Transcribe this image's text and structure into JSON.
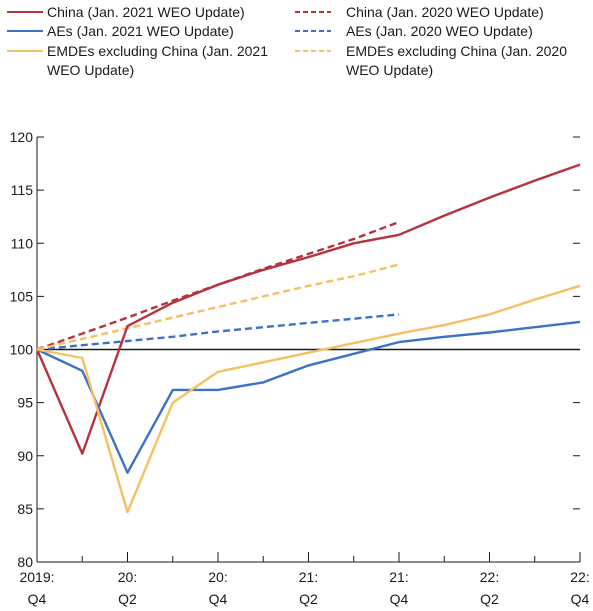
{
  "chart_data": {
    "type": "line",
    "title": "",
    "xlabel": "",
    "ylabel": "",
    "ylim": [
      80,
      120
    ],
    "yticks": [
      80,
      85,
      90,
      95,
      100,
      105,
      110,
      115,
      120
    ],
    "categories": [
      "2019:Q4",
      "20:Q1",
      "20:Q2",
      "20:Q3",
      "20:Q4",
      "21:Q1",
      "21:Q2",
      "21:Q3",
      "21:Q4",
      "22:Q1",
      "22:Q2",
      "22:Q3",
      "22:Q4"
    ],
    "x_tick_labels": [
      {
        "line1": "2019:",
        "line2": "Q4"
      },
      {
        "line1": "20:",
        "line2": "Q2"
      },
      {
        "line1": "20:",
        "line2": "Q4"
      },
      {
        "line1": "21:",
        "line2": "Q2"
      },
      {
        "line1": "21:",
        "line2": "Q4"
      },
      {
        "line1": "22:",
        "line2": "Q2"
      },
      {
        "line1": "22:",
        "line2": "Q4"
      }
    ],
    "reference_line": 100,
    "grid": false,
    "legend_position": "top",
    "series": [
      {
        "name": "China (Jan. 2021 WEO Update)",
        "color": "#b5323f",
        "style": "solid",
        "values": [
          100,
          90.2,
          102.2,
          104.4,
          106.1,
          107.5,
          108.7,
          110.0,
          110.8,
          112.6,
          114.3,
          115.9,
          117.4
        ]
      },
      {
        "name": "AEs (Jan. 2021 WEO Update)",
        "color": "#3b73c4",
        "style": "solid",
        "values": [
          100,
          98.0,
          88.4,
          96.2,
          96.2,
          96.9,
          98.5,
          99.6,
          100.7,
          101.2,
          101.6,
          102.1,
          102.6
        ]
      },
      {
        "name": "EMDEs excluding China (Jan. 2021 WEO Update)",
        "color": "#f5c061",
        "style": "solid",
        "values": [
          100,
          99.2,
          84.7,
          95.0,
          97.9,
          98.8,
          99.7,
          100.6,
          101.5,
          102.3,
          103.3,
          104.7,
          106.0
        ]
      },
      {
        "name": "China (Jan. 2020 WEO Update)",
        "color": "#b5323f",
        "style": "dashed",
        "values": [
          100,
          101.5,
          103.0,
          104.6,
          106.1,
          107.6,
          109.0,
          110.4,
          112.0,
          null,
          null,
          null,
          null
        ]
      },
      {
        "name": "AEs (Jan. 2020 WEO Update)",
        "color": "#3b73c4",
        "style": "dashed",
        "values": [
          100,
          100.4,
          100.8,
          101.2,
          101.7,
          102.1,
          102.5,
          102.9,
          103.3,
          null,
          null,
          null,
          null
        ]
      },
      {
        "name": "EMDEs excluding China (Jan. 2020 WEO Update)",
        "color": "#f5c061",
        "style": "dashed",
        "values": [
          100,
          101.0,
          102.0,
          103.0,
          104.0,
          105.0,
          106.0,
          106.9,
          108.0,
          null,
          null,
          null,
          null
        ]
      }
    ]
  },
  "legend": {
    "items": [
      {
        "lines": [
          "China (Jan. 2021 WEO Update)"
        ],
        "color": "#b5323f",
        "style": "solid"
      },
      {
        "lines": [
          "AEs (Jan. 2021 WEO Update)"
        ],
        "color": "#3b73c4",
        "style": "solid"
      },
      {
        "lines": [
          "EMDEs excluding China (Jan. 2021",
          "WEO Update)"
        ],
        "color": "#f5c061",
        "style": "solid"
      },
      {
        "lines": [
          "China (Jan. 2020 WEO Update)"
        ],
        "color": "#b5323f",
        "style": "dashed"
      },
      {
        "lines": [
          "AEs (Jan. 2020 WEO Update)"
        ],
        "color": "#3b73c4",
        "style": "dashed"
      },
      {
        "lines": [
          "EMDEs excluding China (Jan. 2020",
          "WEO Update)"
        ],
        "color": "#f5c061",
        "style": "dashed"
      }
    ]
  }
}
